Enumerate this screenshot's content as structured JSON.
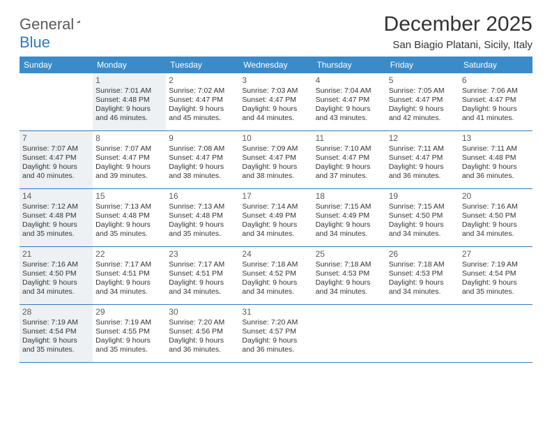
{
  "logo": {
    "text1": "General",
    "text2": "Blue"
  },
  "title": "December 2025",
  "location": "San Biagio Platani, Sicily, Italy",
  "header_bg": "#3b8bc9",
  "rule_color": "#2f7bbf",
  "shaded_bg": "#eef1f3",
  "dow": [
    "Sunday",
    "Monday",
    "Tuesday",
    "Wednesday",
    "Thursday",
    "Friday",
    "Saturday"
  ],
  "weeks": [
    [
      {
        "n": "",
        "shaded": false,
        "lines": []
      },
      {
        "n": "1",
        "shaded": true,
        "lines": [
          "Sunrise: 7:01 AM",
          "Sunset: 4:48 PM",
          "Daylight: 9 hours",
          "and 46 minutes."
        ]
      },
      {
        "n": "2",
        "shaded": false,
        "lines": [
          "Sunrise: 7:02 AM",
          "Sunset: 4:47 PM",
          "Daylight: 9 hours",
          "and 45 minutes."
        ]
      },
      {
        "n": "3",
        "shaded": false,
        "lines": [
          "Sunrise: 7:03 AM",
          "Sunset: 4:47 PM",
          "Daylight: 9 hours",
          "and 44 minutes."
        ]
      },
      {
        "n": "4",
        "shaded": false,
        "lines": [
          "Sunrise: 7:04 AM",
          "Sunset: 4:47 PM",
          "Daylight: 9 hours",
          "and 43 minutes."
        ]
      },
      {
        "n": "5",
        "shaded": false,
        "lines": [
          "Sunrise: 7:05 AM",
          "Sunset: 4:47 PM",
          "Daylight: 9 hours",
          "and 42 minutes."
        ]
      },
      {
        "n": "6",
        "shaded": false,
        "lines": [
          "Sunrise: 7:06 AM",
          "Sunset: 4:47 PM",
          "Daylight: 9 hours",
          "and 41 minutes."
        ]
      }
    ],
    [
      {
        "n": "7",
        "shaded": true,
        "lines": [
          "Sunrise: 7:07 AM",
          "Sunset: 4:47 PM",
          "Daylight: 9 hours",
          "and 40 minutes."
        ]
      },
      {
        "n": "8",
        "shaded": false,
        "lines": [
          "Sunrise: 7:07 AM",
          "Sunset: 4:47 PM",
          "Daylight: 9 hours",
          "and 39 minutes."
        ]
      },
      {
        "n": "9",
        "shaded": false,
        "lines": [
          "Sunrise: 7:08 AM",
          "Sunset: 4:47 PM",
          "Daylight: 9 hours",
          "and 38 minutes."
        ]
      },
      {
        "n": "10",
        "shaded": false,
        "lines": [
          "Sunrise: 7:09 AM",
          "Sunset: 4:47 PM",
          "Daylight: 9 hours",
          "and 38 minutes."
        ]
      },
      {
        "n": "11",
        "shaded": false,
        "lines": [
          "Sunrise: 7:10 AM",
          "Sunset: 4:47 PM",
          "Daylight: 9 hours",
          "and 37 minutes."
        ]
      },
      {
        "n": "12",
        "shaded": false,
        "lines": [
          "Sunrise: 7:11 AM",
          "Sunset: 4:47 PM",
          "Daylight: 9 hours",
          "and 36 minutes."
        ]
      },
      {
        "n": "13",
        "shaded": false,
        "lines": [
          "Sunrise: 7:11 AM",
          "Sunset: 4:48 PM",
          "Daylight: 9 hours",
          "and 36 minutes."
        ]
      }
    ],
    [
      {
        "n": "14",
        "shaded": true,
        "lines": [
          "Sunrise: 7:12 AM",
          "Sunset: 4:48 PM",
          "Daylight: 9 hours",
          "and 35 minutes."
        ]
      },
      {
        "n": "15",
        "shaded": false,
        "lines": [
          "Sunrise: 7:13 AM",
          "Sunset: 4:48 PM",
          "Daylight: 9 hours",
          "and 35 minutes."
        ]
      },
      {
        "n": "16",
        "shaded": false,
        "lines": [
          "Sunrise: 7:13 AM",
          "Sunset: 4:48 PM",
          "Daylight: 9 hours",
          "and 35 minutes."
        ]
      },
      {
        "n": "17",
        "shaded": false,
        "lines": [
          "Sunrise: 7:14 AM",
          "Sunset: 4:49 PM",
          "Daylight: 9 hours",
          "and 34 minutes."
        ]
      },
      {
        "n": "18",
        "shaded": false,
        "lines": [
          "Sunrise: 7:15 AM",
          "Sunset: 4:49 PM",
          "Daylight: 9 hours",
          "and 34 minutes."
        ]
      },
      {
        "n": "19",
        "shaded": false,
        "lines": [
          "Sunrise: 7:15 AM",
          "Sunset: 4:50 PM",
          "Daylight: 9 hours",
          "and 34 minutes."
        ]
      },
      {
        "n": "20",
        "shaded": false,
        "lines": [
          "Sunrise: 7:16 AM",
          "Sunset: 4:50 PM",
          "Daylight: 9 hours",
          "and 34 minutes."
        ]
      }
    ],
    [
      {
        "n": "21",
        "shaded": true,
        "lines": [
          "Sunrise: 7:16 AM",
          "Sunset: 4:50 PM",
          "Daylight: 9 hours",
          "and 34 minutes."
        ]
      },
      {
        "n": "22",
        "shaded": false,
        "lines": [
          "Sunrise: 7:17 AM",
          "Sunset: 4:51 PM",
          "Daylight: 9 hours",
          "and 34 minutes."
        ]
      },
      {
        "n": "23",
        "shaded": false,
        "lines": [
          "Sunrise: 7:17 AM",
          "Sunset: 4:51 PM",
          "Daylight: 9 hours",
          "and 34 minutes."
        ]
      },
      {
        "n": "24",
        "shaded": false,
        "lines": [
          "Sunrise: 7:18 AM",
          "Sunset: 4:52 PM",
          "Daylight: 9 hours",
          "and 34 minutes."
        ]
      },
      {
        "n": "25",
        "shaded": false,
        "lines": [
          "Sunrise: 7:18 AM",
          "Sunset: 4:53 PM",
          "Daylight: 9 hours",
          "and 34 minutes."
        ]
      },
      {
        "n": "26",
        "shaded": false,
        "lines": [
          "Sunrise: 7:18 AM",
          "Sunset: 4:53 PM",
          "Daylight: 9 hours",
          "and 34 minutes."
        ]
      },
      {
        "n": "27",
        "shaded": false,
        "lines": [
          "Sunrise: 7:19 AM",
          "Sunset: 4:54 PM",
          "Daylight: 9 hours",
          "and 35 minutes."
        ]
      }
    ],
    [
      {
        "n": "28",
        "shaded": true,
        "lines": [
          "Sunrise: 7:19 AM",
          "Sunset: 4:54 PM",
          "Daylight: 9 hours",
          "and 35 minutes."
        ]
      },
      {
        "n": "29",
        "shaded": false,
        "lines": [
          "Sunrise: 7:19 AM",
          "Sunset: 4:55 PM",
          "Daylight: 9 hours",
          "and 35 minutes."
        ]
      },
      {
        "n": "30",
        "shaded": false,
        "lines": [
          "Sunrise: 7:20 AM",
          "Sunset: 4:56 PM",
          "Daylight: 9 hours",
          "and 36 minutes."
        ]
      },
      {
        "n": "31",
        "shaded": false,
        "lines": [
          "Sunrise: 7:20 AM",
          "Sunset: 4:57 PM",
          "Daylight: 9 hours",
          "and 36 minutes."
        ]
      },
      {
        "n": "",
        "shaded": false,
        "lines": []
      },
      {
        "n": "",
        "shaded": false,
        "lines": []
      },
      {
        "n": "",
        "shaded": false,
        "lines": []
      }
    ]
  ]
}
